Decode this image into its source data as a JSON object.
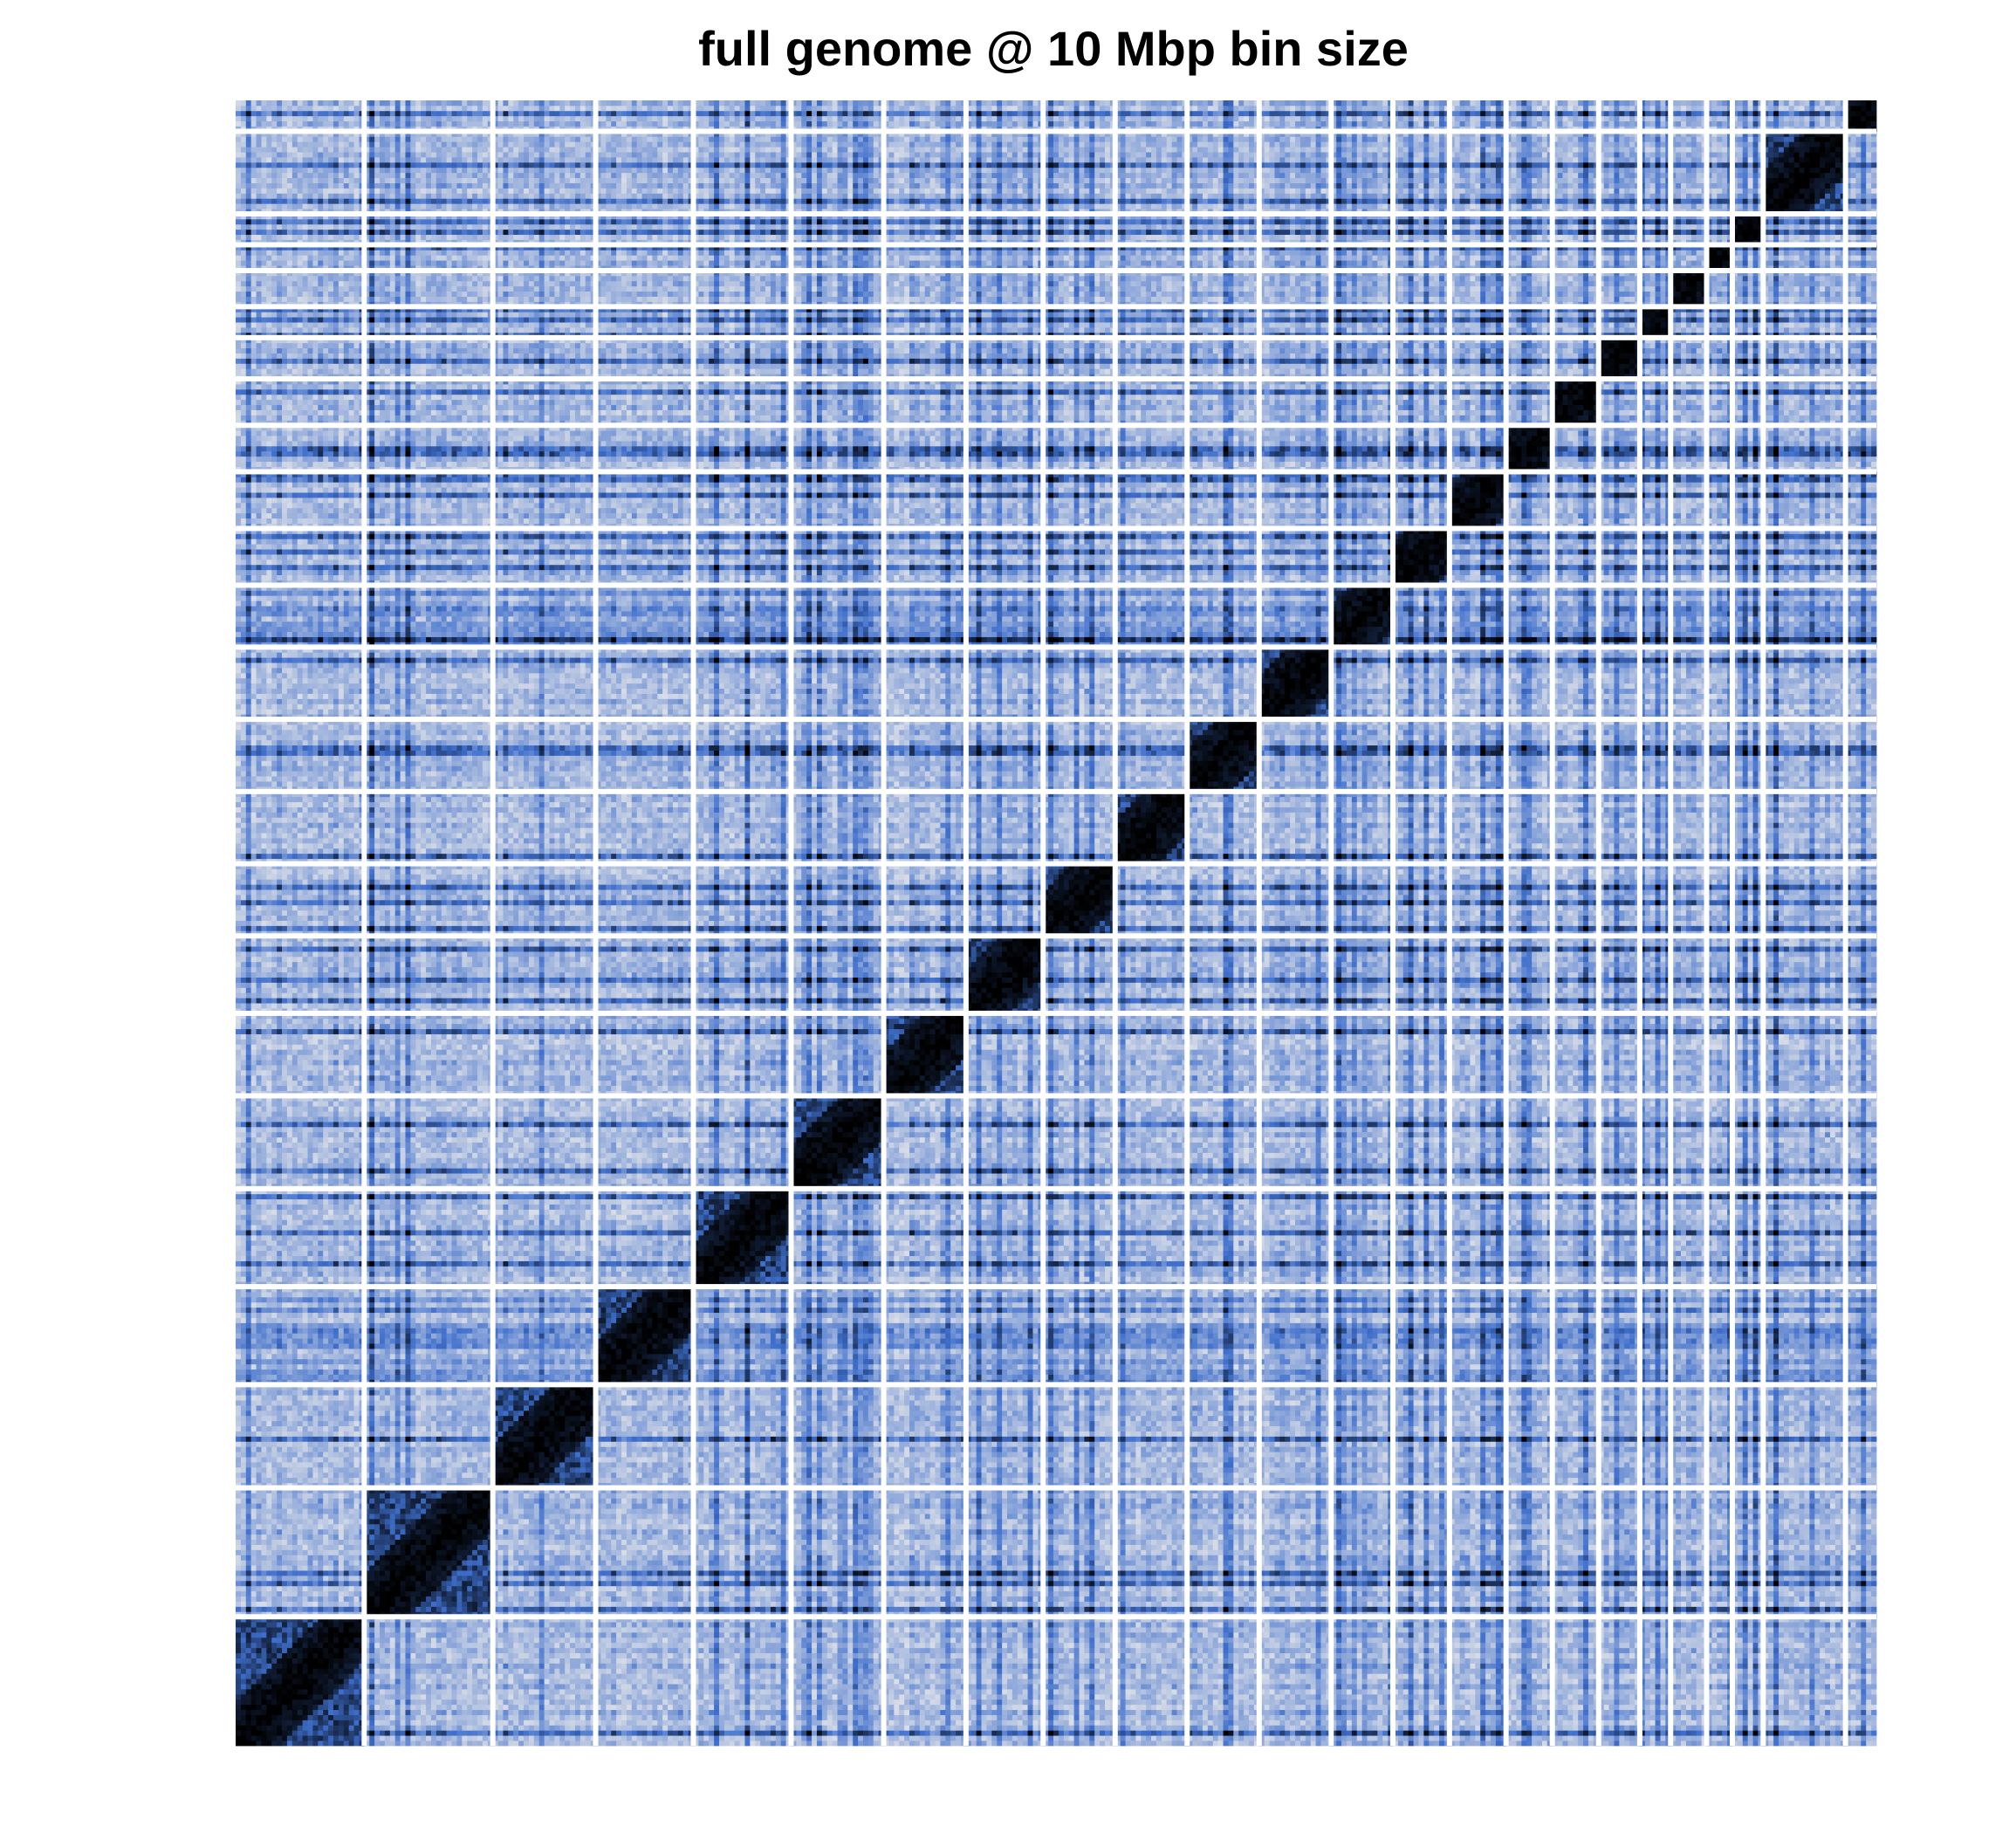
{
  "chart_data": {
    "type": "heatmap",
    "title": "full genome @ 10 Mbp bin size",
    "xlabel": "",
    "ylabel": "",
    "n_chromosomes": 24,
    "chromosome_sizes_mbp": [
      249,
      242,
      198,
      190,
      181,
      171,
      159,
      145,
      138,
      134,
      135,
      133,
      114,
      107,
      102,
      90,
      83,
      80,
      59,
      64,
      47,
      51,
      156,
      57
    ],
    "color_scale": {
      "low": "#e9e9ea",
      "mid": "#3f6fcc",
      "high": "#000000",
      "gap": "#ffffff"
    },
    "grid": false,
    "legend": "none",
    "notes_visible": "",
    "strong_interchrom_rows": [
      3,
      12
    ],
    "strong_interchrom_cols": [
      5,
      12
    ]
  }
}
